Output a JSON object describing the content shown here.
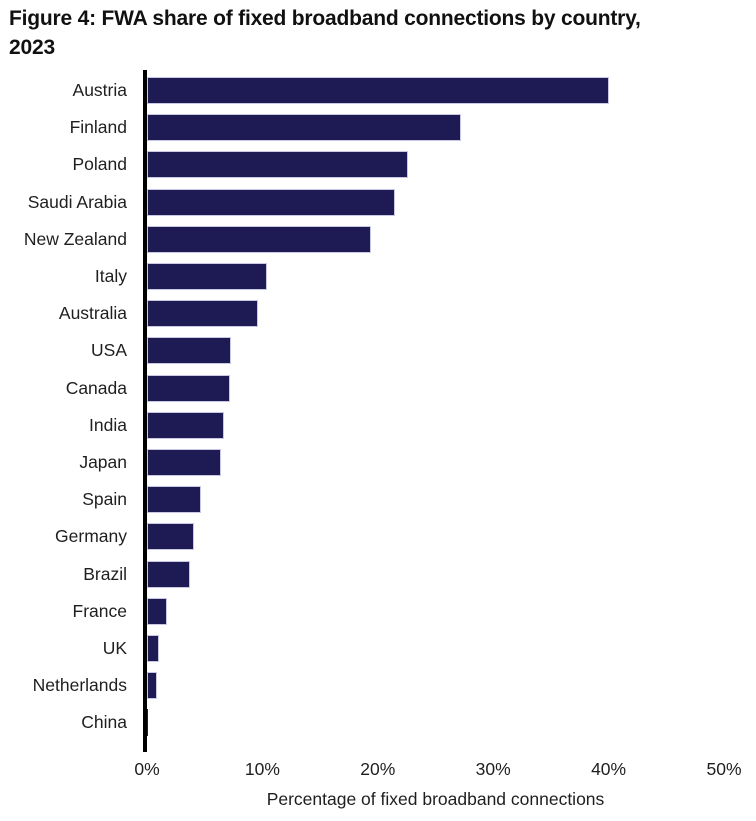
{
  "title": {
    "line1": "Figure 4: FWA share of fixed broadband connections by country,",
    "line2": "2023"
  },
  "chart_data": {
    "type": "bar",
    "orientation": "horizontal",
    "title": "Figure 4: FWA share of fixed broadband connections by country, 2023",
    "xlabel": "Percentage of fixed broadband connections",
    "ylabel": "",
    "xlim": [
      0,
      50
    ],
    "tick_values": [
      0,
      10,
      20,
      30,
      40,
      50
    ],
    "tick_labels": [
      "0%",
      "10%",
      "20%",
      "30%",
      "40%",
      "50%"
    ],
    "grid": false,
    "legend": false,
    "categories": [
      "Austria",
      "Finland",
      "Poland",
      "Saudi Arabia",
      "New Zealand",
      "Italy",
      "Australia",
      "USA",
      "Canada",
      "India",
      "Japan",
      "Spain",
      "Germany",
      "Brazil",
      "France",
      "UK",
      "Netherlands",
      "China"
    ],
    "values": [
      40.0,
      27.2,
      22.6,
      21.5,
      19.4,
      10.4,
      9.6,
      7.3,
      7.2,
      6.7,
      6.4,
      4.7,
      4.1,
      3.7,
      1.7,
      1.0,
      0.9,
      0.05
    ],
    "colors": {
      "bar": "#1E1A54",
      "bar_border": "#C9C8E2",
      "axis": "#000000",
      "text": "#1A1A1A"
    }
  }
}
